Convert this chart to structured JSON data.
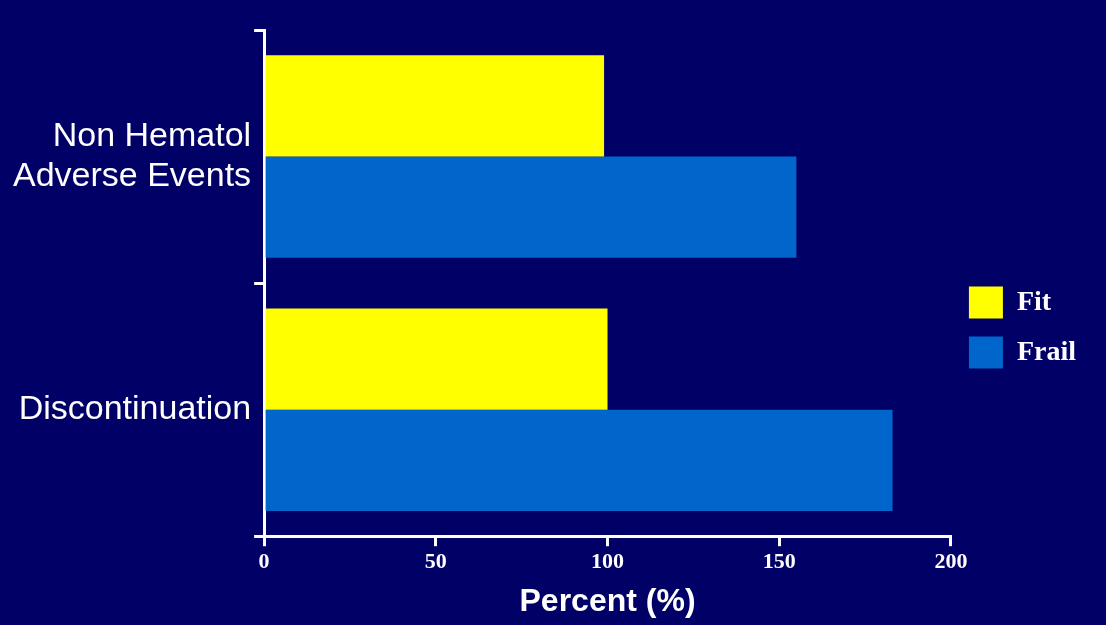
{
  "chart_data": {
    "type": "bar",
    "orientation": "horizontal",
    "categories": [
      "Non Hematol Adverse Events",
      "Discontinuation"
    ],
    "xlabel": "Percent (%)",
    "xlim": [
      0,
      200
    ],
    "xticks": [
      0,
      50,
      100,
      150,
      200
    ],
    "series": [
      {
        "name": "Fit",
        "color": "#ffff00",
        "values": [
          99,
          100
        ]
      },
      {
        "name": "Frail",
        "color": "#0066cc",
        "values": [
          155,
          183
        ]
      }
    ],
    "legend": "right",
    "grid": false
  }
}
